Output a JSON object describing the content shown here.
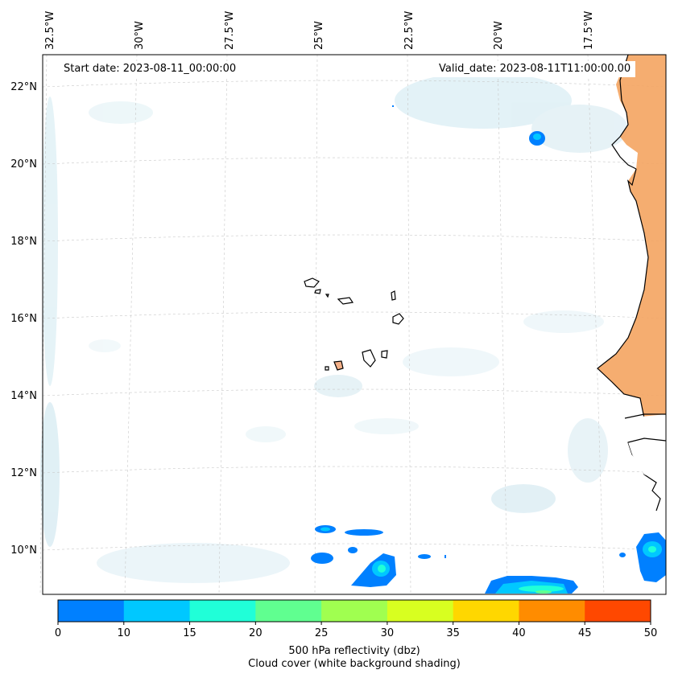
{
  "map": {
    "start_date": "Start date: 2023-08-11_00:00:00",
    "valid_date": "Valid_date: 2023-08-11T11:00:00.00",
    "lat_labels": [
      "22°N",
      "20°N",
      "18°N",
      "16°N",
      "14°N",
      "12°N",
      "10°N"
    ],
    "lon_labels": [
      "32.5°W",
      "30°W",
      "27.5°W",
      "25°W",
      "22.5°W",
      "20°W",
      "17.5°W"
    ],
    "colors": {
      "land_orange": "#f4a460",
      "cloud_blue": "#cfe6ee",
      "coast": "#000000"
    }
  },
  "colorbar": {
    "ticks": [
      "0",
      "10",
      "15",
      "20",
      "25",
      "30",
      "35",
      "40",
      "45",
      "50"
    ],
    "colors": [
      "#0080ff",
      "#00c8ff",
      "#20ffd8",
      "#60ff90",
      "#a0ff50",
      "#d8ff20",
      "#ffd700",
      "#ff8c00",
      "#ff4800"
    ],
    "title_line1": "500 hPa reflectivity (dbz)",
    "title_line2": "Cloud cover (white background shading)"
  }
}
